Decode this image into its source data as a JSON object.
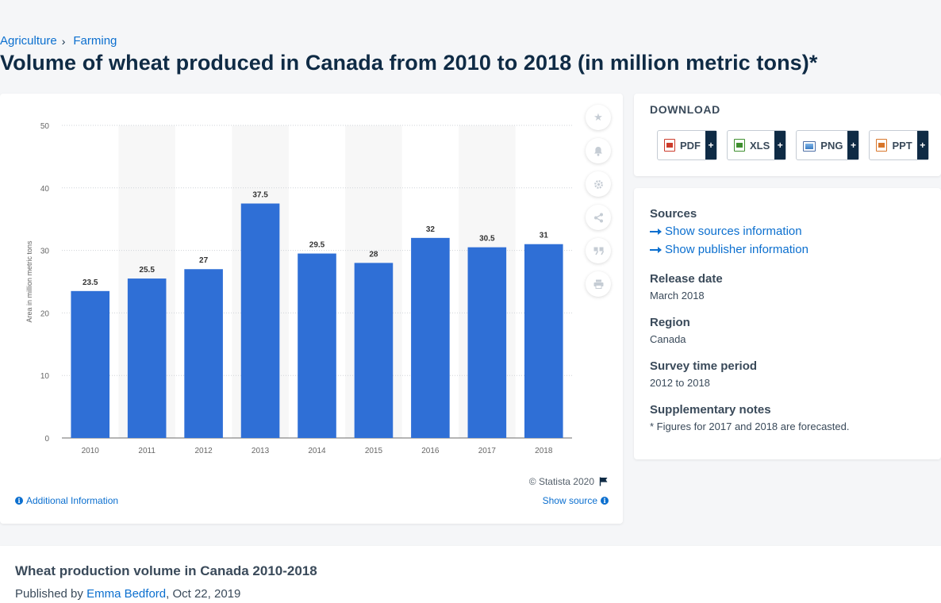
{
  "breadcrumb": {
    "items": [
      "Agriculture",
      "Farming"
    ],
    "separator": "›"
  },
  "page": {
    "title": "Volume of wheat produced in Canada from 2010 to 2018 (in million metric tons)*"
  },
  "chart_data": {
    "type": "bar",
    "categories": [
      "2010",
      "2011",
      "2012",
      "2013",
      "2014",
      "2015",
      "2016",
      "2017",
      "2018"
    ],
    "values": [
      23.5,
      25.5,
      27,
      37.5,
      29.5,
      28,
      32,
      30.5,
      31
    ],
    "data_labels": [
      "23.5",
      "25.5",
      "27",
      "37.5",
      "29.5",
      "28",
      "32",
      "30.5",
      "31"
    ],
    "ylabel": "Area in million metric tons",
    "xlabel": "",
    "ylim": [
      0,
      50
    ],
    "yticks": [
      "0",
      "10",
      "20",
      "30",
      "40",
      "50"
    ],
    "grid": true,
    "bar_color": "#2f6fd6"
  },
  "chart_footer": {
    "copyright": "© Statista 2020",
    "additional_info": "Additional Information",
    "show_source": "Show source"
  },
  "toolbar": {
    "icons": [
      "star-icon",
      "bell-icon",
      "gear-icon",
      "share-icon",
      "quote-icon",
      "print-icon"
    ]
  },
  "download": {
    "title": "DOWNLOAD",
    "buttons": [
      {
        "label": "PDF",
        "icon": "pdf-file-icon"
      },
      {
        "label": "XLS",
        "icon": "xls-file-icon"
      },
      {
        "label": "PNG",
        "icon": "png-file-icon"
      },
      {
        "label": "PPT",
        "icon": "ppt-file-icon"
      }
    ],
    "plus": "+"
  },
  "info": {
    "sources_head": "Sources",
    "show_sources": "Show sources information",
    "show_publisher": "Show publisher information",
    "release_head": "Release date",
    "release_val": "March 2018",
    "region_head": "Region",
    "region_val": "Canada",
    "survey_head": "Survey time period",
    "survey_val": "2012 to 2018",
    "notes_head": "Supplementary notes",
    "notes_val": "* Figures for 2017 and 2018 are forecasted."
  },
  "bottom": {
    "title": "Wheat production volume in Canada 2010-2018",
    "published_prefix": "Published by",
    "author": "Emma Bedford",
    "date": ", Oct 22, 2019"
  },
  "colors": {
    "accent": "#0b6fcf",
    "navy": "#0f2b45"
  }
}
